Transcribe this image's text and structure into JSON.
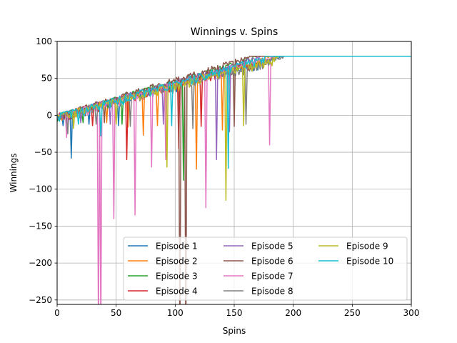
{
  "chart_data": {
    "type": "line",
    "title": "Winnings v. Spins",
    "xlabel": "Spins",
    "ylabel": "Winnings",
    "xlim": [
      0,
      300
    ],
    "ylim": [
      -256,
      100
    ],
    "xticks": [
      0,
      50,
      100,
      150,
      200,
      250,
      300
    ],
    "yticks": [
      -250,
      -200,
      -150,
      -100,
      -50,
      0,
      50,
      100
    ],
    "grid": true,
    "legend": {
      "position": "lower-right",
      "columns": 3
    },
    "target": 80,
    "series": [
      {
        "name": "Episode 1",
        "color": "#1f77b4",
        "reach": 189,
        "dips": [
          [
            5,
            -14
          ],
          [
            12,
            -58
          ],
          [
            27,
            -12
          ],
          [
            52,
            -14
          ]
        ]
      },
      {
        "name": "Episode 2",
        "color": "#ff7f0e",
        "reach": 180,
        "dips": [
          [
            42,
            -10
          ],
          [
            60,
            -16
          ],
          [
            73,
            -27
          ],
          [
            85,
            -14
          ],
          [
            118,
            -73
          ],
          [
            140,
            -20
          ]
        ]
      },
      {
        "name": "Episode 3",
        "color": "#2ca02c",
        "reach": 170,
        "dips": [
          [
            22,
            -10
          ],
          [
            55,
            -12
          ],
          [
            107,
            -88
          ]
        ]
      },
      {
        "name": "Episode 4",
        "color": "#d62728",
        "reach": 186,
        "dips": [
          [
            30,
            -14
          ],
          [
            59,
            -60
          ],
          [
            103,
            -45
          ],
          [
            122,
            -15
          ]
        ]
      },
      {
        "name": "Episode 5",
        "color": "#9467bd",
        "reach": 172,
        "dips": [
          [
            20,
            -10
          ],
          [
            45,
            -12
          ],
          [
            90,
            -12
          ],
          [
            135,
            -60
          ],
          [
            146,
            -22
          ]
        ]
      },
      {
        "name": "Episode 6",
        "color": "#8c564b",
        "reach": 163,
        "dips": [
          [
            40,
            -10
          ],
          [
            104,
            -320
          ],
          [
            109,
            -320
          ],
          [
            150,
            -15
          ]
        ]
      },
      {
        "name": "Episode 7",
        "color": "#e377c2",
        "reach": 185,
        "dips": [
          [
            8,
            -30
          ],
          [
            35,
            -300
          ],
          [
            37,
            -300
          ],
          [
            48,
            -140
          ],
          [
            66,
            -135
          ],
          [
            80,
            -70
          ],
          [
            92,
            -60
          ],
          [
            126,
            -125
          ],
          [
            180,
            -40
          ]
        ]
      },
      {
        "name": "Episode 8",
        "color": "#7f7f7f",
        "reach": 193,
        "dips": [
          [
            9,
            -25
          ],
          [
            33,
            -12
          ],
          [
            62,
            -15
          ],
          [
            115,
            -18
          ],
          [
            160,
            -12
          ]
        ]
      },
      {
        "name": "Episode 9",
        "color": "#bcbd22",
        "reach": 188,
        "dips": [
          [
            14,
            -18
          ],
          [
            50,
            -12
          ],
          [
            93,
            -70
          ],
          [
            143,
            -115
          ],
          [
            158,
            -14
          ]
        ]
      },
      {
        "name": "Episode 10",
        "color": "#17becf",
        "reach": 177,
        "dips": [
          [
            18,
            -12
          ],
          [
            37,
            -28
          ],
          [
            97,
            -14
          ],
          [
            145,
            -72
          ]
        ]
      }
    ]
  }
}
